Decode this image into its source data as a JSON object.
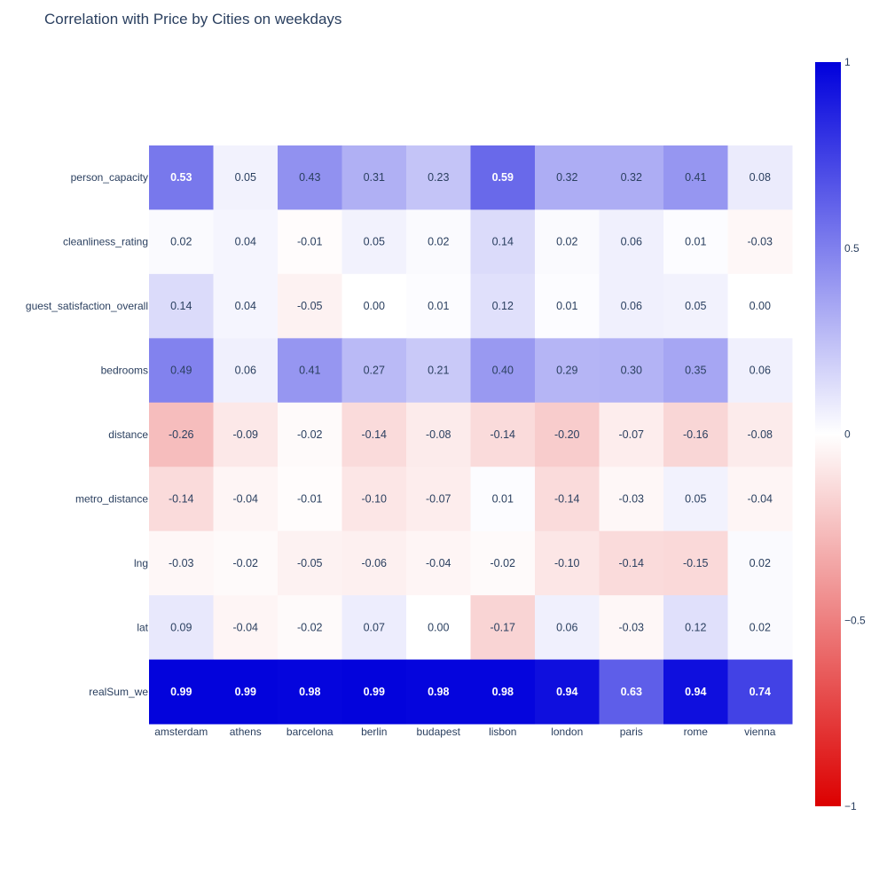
{
  "chart_data": {
    "type": "heatmap",
    "title": "Correlation with Price by Cities on weekdays",
    "x_categories": [
      "amsterdam",
      "athens",
      "barcelona",
      "berlin",
      "budapest",
      "lisbon",
      "london",
      "paris",
      "rome",
      "vienna"
    ],
    "y_categories": [
      "person_capacity",
      "cleanliness_rating",
      "guest_satisfaction_overall",
      "bedrooms",
      "distance",
      "metro_distance",
      "lng",
      "lat",
      "realSum_we"
    ],
    "values": [
      [
        0.53,
        0.05,
        0.43,
        0.31,
        0.23,
        0.59,
        0.32,
        0.32,
        0.41,
        0.08
      ],
      [
        0.02,
        0.04,
        -0.01,
        0.05,
        0.02,
        0.14,
        0.02,
        0.06,
        0.01,
        -0.03
      ],
      [
        0.14,
        0.04,
        -0.05,
        0.0,
        0.01,
        0.12,
        0.01,
        0.06,
        0.05,
        0.0
      ],
      [
        0.49,
        0.06,
        0.41,
        0.27,
        0.21,
        0.4,
        0.29,
        0.3,
        0.35,
        0.06
      ],
      [
        -0.26,
        -0.09,
        -0.02,
        -0.14,
        -0.08,
        -0.14,
        -0.2,
        -0.07,
        -0.16,
        -0.08
      ],
      [
        -0.14,
        -0.04,
        -0.01,
        -0.1,
        -0.07,
        0.01,
        -0.14,
        -0.03,
        0.05,
        -0.04
      ],
      [
        -0.03,
        -0.02,
        -0.05,
        -0.06,
        -0.04,
        -0.02,
        -0.1,
        -0.14,
        -0.15,
        0.02
      ],
      [
        0.09,
        -0.04,
        -0.02,
        0.07,
        0.0,
        -0.17,
        0.06,
        -0.03,
        0.12,
        0.02
      ],
      [
        0.99,
        0.99,
        0.98,
        0.99,
        0.98,
        0.98,
        0.94,
        0.63,
        0.94,
        0.74
      ]
    ],
    "zmin": -1,
    "zmax": 1,
    "colorscale": [
      [
        0,
        "#dc0000"
      ],
      [
        0.5,
        "#ffffff"
      ],
      [
        1,
        "#0000dc"
      ]
    ],
    "colorbar_ticks": [
      {
        "value": 1,
        "label": "1"
      },
      {
        "value": 0.5,
        "label": "0.5"
      },
      {
        "value": 0,
        "label": "0"
      },
      {
        "value": -0.5,
        "label": "−0.5"
      },
      {
        "value": -1,
        "label": "−1"
      }
    ],
    "label_format_decimals": 2,
    "grid": false
  }
}
